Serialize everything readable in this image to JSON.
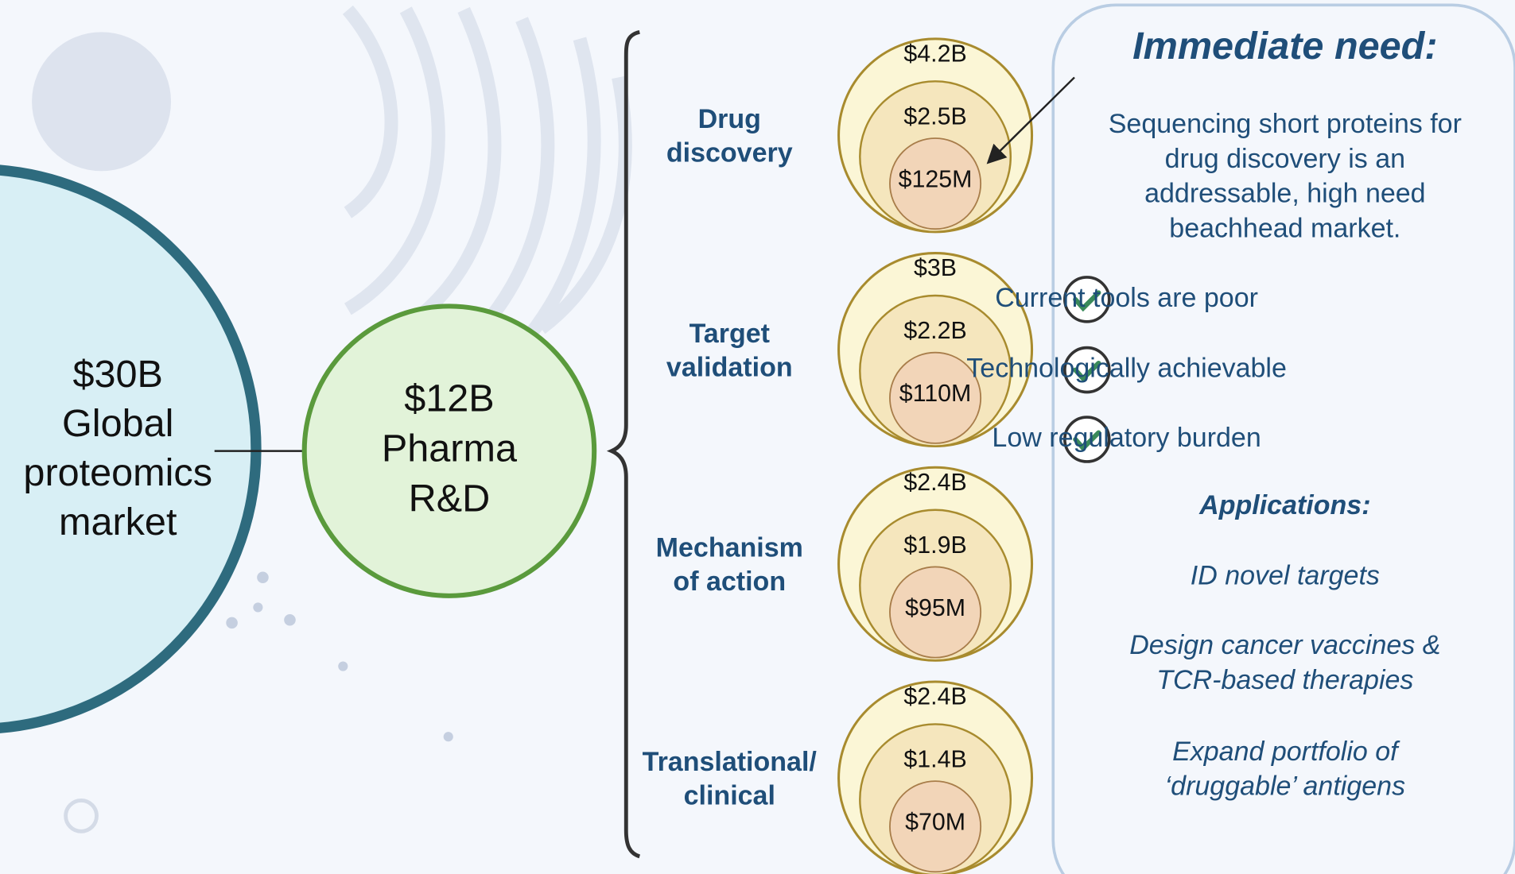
{
  "global_market": {
    "lines": [
      "$30B",
      "Global",
      "proteomics",
      "market"
    ]
  },
  "pharma": {
    "lines": [
      "$12B",
      "Pharma",
      "R&D"
    ]
  },
  "stages": [
    {
      "label": [
        "Drug",
        "discovery"
      ],
      "values": [
        "$4.2B",
        "$2.5B",
        "$125M"
      ]
    },
    {
      "label": [
        "Target",
        "validation"
      ],
      "values": [
        "$3B",
        "$2.2B",
        "$110M"
      ]
    },
    {
      "label": [
        "Mechanism",
        "of action"
      ],
      "values": [
        "$2.4B",
        "$1.9B",
        "$95M"
      ]
    },
    {
      "label": [
        "Translational/",
        "clinical"
      ],
      "values": [
        "$2.4B",
        "$1.4B",
        "$70M"
      ]
    }
  ],
  "panel": {
    "title": "Immediate need:",
    "description": [
      "Sequencing short proteins for",
      "drug discovery is an",
      "addressable, high need",
      "beachhead market."
    ],
    "checks": [
      "Current tools are poor",
      "Technologically achievable",
      "Low regulatory burden"
    ],
    "applications_title": "Applications:",
    "applications": [
      [
        "ID novel targets"
      ],
      [
        "Design cancer vaccines &",
        "TCR-based therapies"
      ],
      [
        "Expand portfolio of",
        "‘druggable’ antigens"
      ]
    ]
  }
}
